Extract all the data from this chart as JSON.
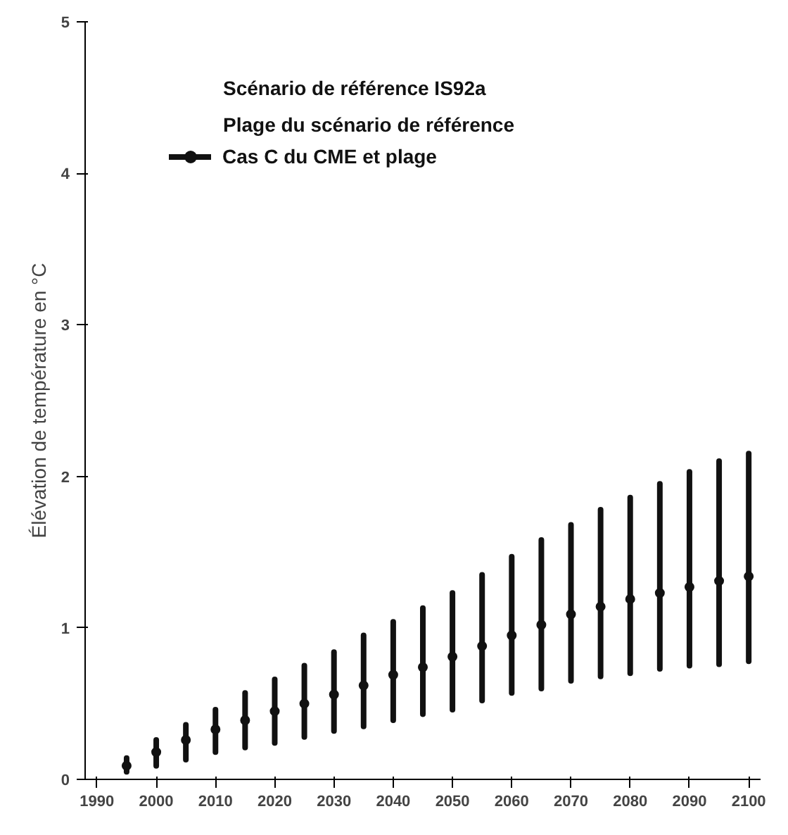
{
  "chart_data": {
    "type": "scatter",
    "ylabel": "Élévation de température en °C",
    "annotations": [
      "Scénario de référence IS92a",
      "Plage du scénario de référence"
    ],
    "x": [
      1995,
      2000,
      2005,
      2010,
      2015,
      2020,
      2025,
      2030,
      2035,
      2040,
      2045,
      2050,
      2055,
      2060,
      2065,
      2070,
      2075,
      2080,
      2085,
      2090,
      2095,
      2100
    ],
    "series": [
      {
        "name": "Cas C du CME et plage",
        "color": "#111111",
        "values": [
          0.09,
          0.18,
          0.26,
          0.33,
          0.39,
          0.45,
          0.5,
          0.56,
          0.62,
          0.69,
          0.74,
          0.81,
          0.88,
          0.95,
          1.02,
          1.09,
          1.14,
          1.19,
          1.23,
          1.27,
          1.31,
          1.34
        ],
        "errors": [
          [
            0.05,
            0.14
          ],
          [
            0.09,
            0.26
          ],
          [
            0.13,
            0.36
          ],
          [
            0.18,
            0.46
          ],
          [
            0.21,
            0.57
          ],
          [
            0.24,
            0.66
          ],
          [
            0.28,
            0.75
          ],
          [
            0.32,
            0.84
          ],
          [
            0.35,
            0.95
          ],
          [
            0.39,
            1.04
          ],
          [
            0.43,
            1.13
          ],
          [
            0.46,
            1.23
          ],
          [
            0.52,
            1.35
          ],
          [
            0.57,
            1.47
          ],
          [
            0.6,
            1.58
          ],
          [
            0.65,
            1.68
          ],
          [
            0.68,
            1.78
          ],
          [
            0.7,
            1.86
          ],
          [
            0.73,
            1.95
          ],
          [
            0.75,
            2.03
          ],
          [
            0.76,
            2.1
          ],
          [
            0.78,
            2.15
          ]
        ]
      }
    ],
    "xlim": [
      1988,
      2102
    ],
    "ylim": [
      0,
      5
    ],
    "xticks": [
      1990,
      2000,
      2010,
      2020,
      2030,
      2040,
      2050,
      2060,
      2070,
      2080,
      2090,
      2100
    ],
    "yticks": [
      0,
      1,
      2,
      3,
      4,
      5
    ],
    "marker": "circle",
    "grid": false,
    "legend": "top left"
  }
}
